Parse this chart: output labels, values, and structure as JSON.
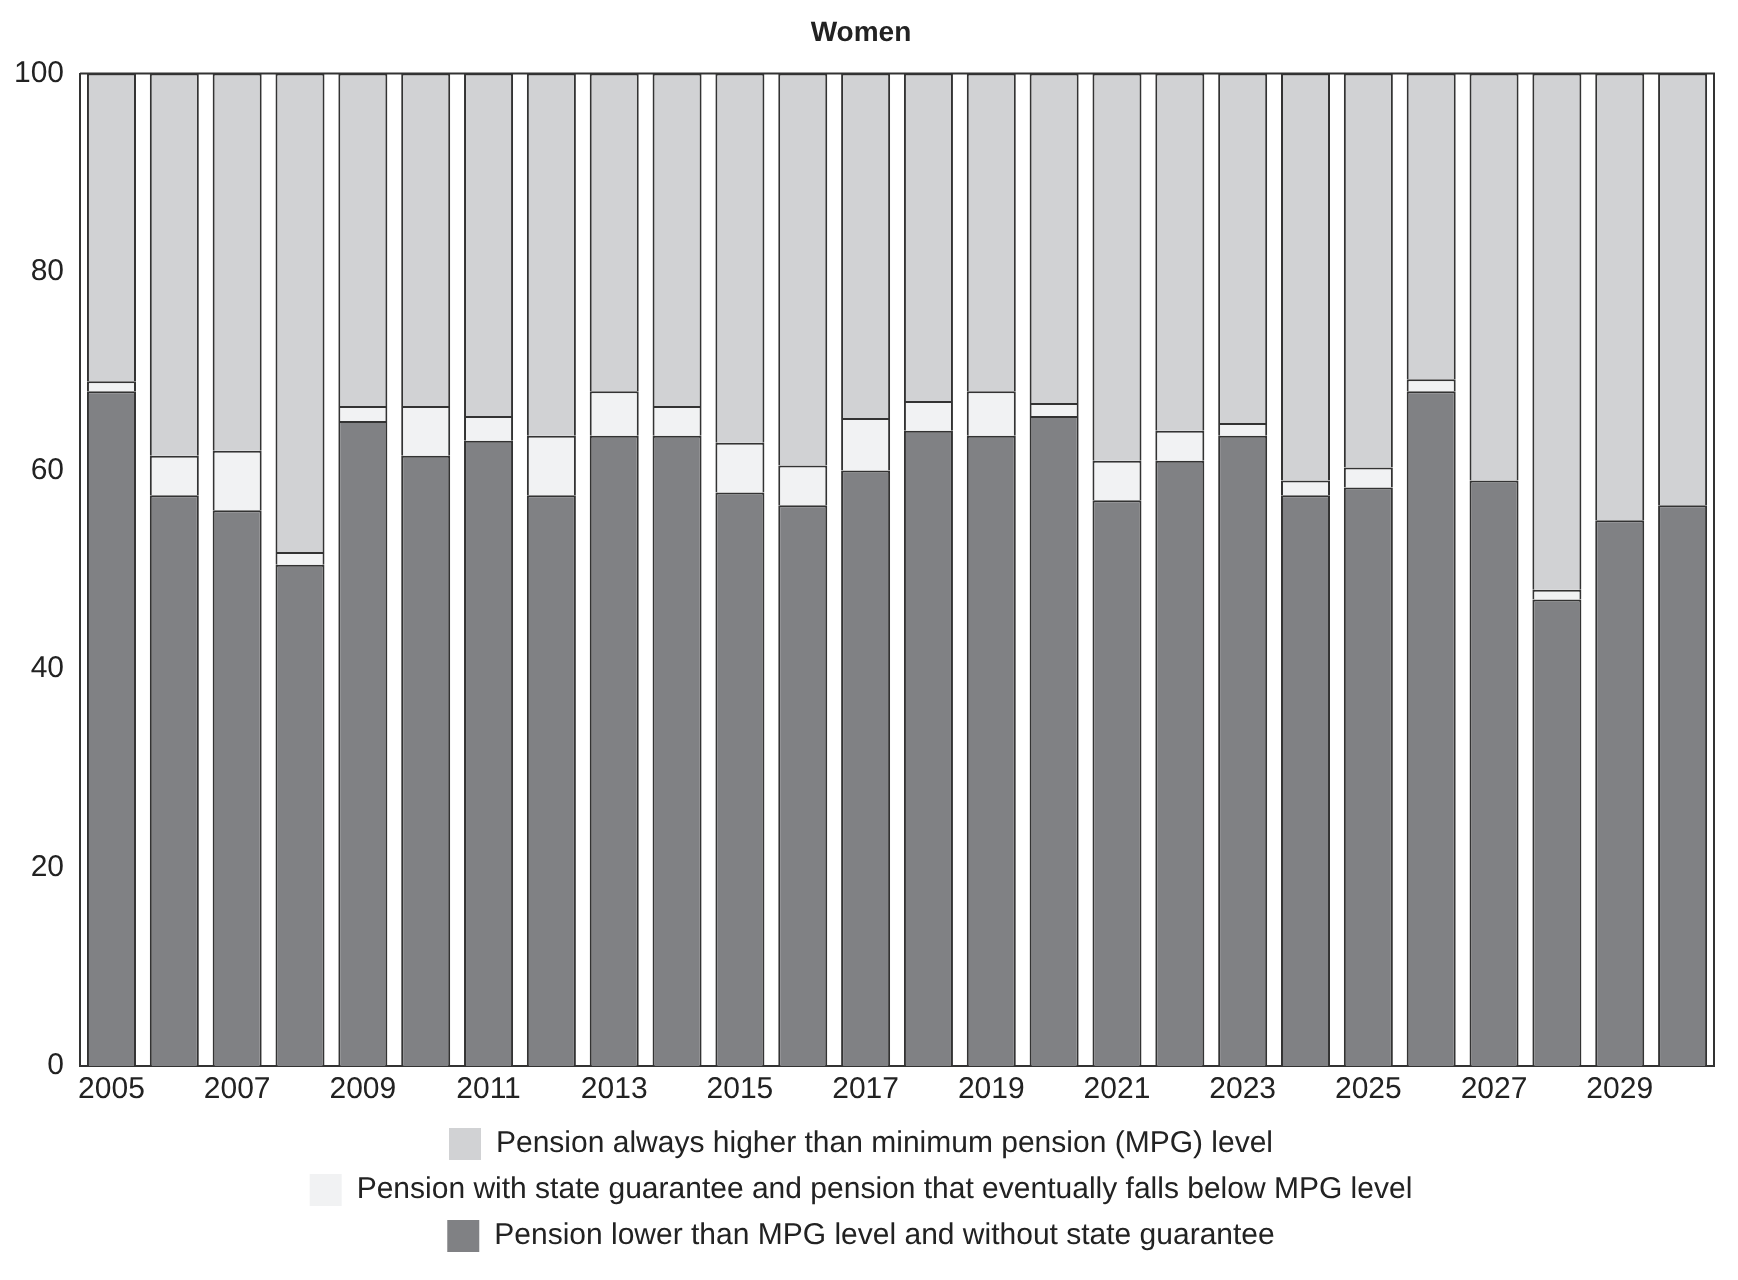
{
  "chart_data": {
    "type": "bar",
    "title": "Women",
    "stacked": true,
    "legend": "bottom",
    "categories": [
      "2005",
      null,
      "2007",
      null,
      "2009",
      null,
      "2011",
      null,
      "2013",
      null,
      "2015",
      null,
      "2017",
      null,
      "2019",
      null,
      "2021",
      null,
      "2023",
      null,
      "2025",
      null,
      "2027",
      null,
      "2029",
      null
    ],
    "ylim": [
      0,
      100
    ],
    "yticks": [
      0,
      20,
      40,
      60,
      80,
      100
    ],
    "grid": false,
    "series": [
      {
        "name": "Pension lower than MPG level and without state guarantee",
        "color": "#808184",
        "values": [
          68,
          57.5,
          56,
          50.5,
          65,
          61.5,
          63,
          57.5,
          63.5,
          63.5,
          57.8,
          56.5,
          60,
          64,
          63.5,
          65.5,
          57,
          61,
          63.5,
          57.5,
          58.3,
          68,
          59,
          47,
          55,
          56.5
        ]
      },
      {
        "name": "Pension with state guarantee and pension that eventually falls below MPG level",
        "color": "#f1f2f3",
        "values": [
          1,
          4,
          6,
          1.3,
          1.5,
          5,
          2.5,
          6,
          4.5,
          3,
          5,
          4,
          5.3,
          3,
          4.5,
          1.3,
          4,
          3,
          1.3,
          1.5,
          2,
          1.2,
          0,
          1,
          0,
          0
        ]
      },
      {
        "name": "Pension always higher than minimum pension (MPG) level",
        "color": "#d1d2d4",
        "values": [
          31,
          38.5,
          38,
          48.2,
          33.5,
          33.5,
          34.5,
          36.5,
          32,
          33.5,
          37.2,
          39.5,
          34.7,
          33,
          32,
          33.2,
          39,
          36,
          35.2,
          41,
          39.7,
          30.8,
          41,
          52,
          45,
          43.5
        ]
      }
    ]
  }
}
